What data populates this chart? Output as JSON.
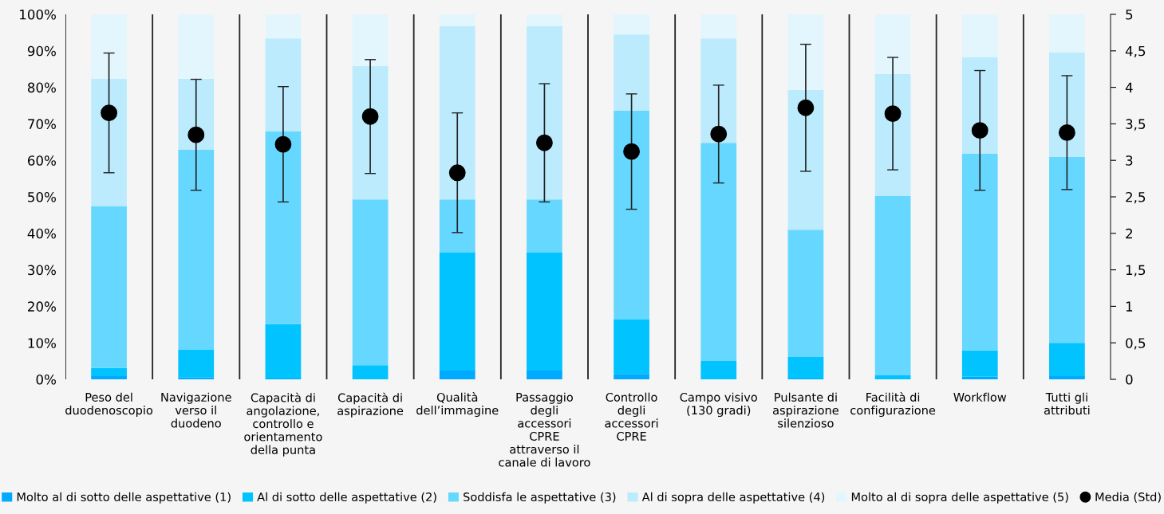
{
  "chart_data": {
    "type": "bar",
    "stacked": true,
    "categories": [
      "Peso del\nduodenoscopio",
      "Navigazione\nverso il\nduodeno",
      "Capacità di\nangolazione,\ncontrollo e\norientamento\ndella punta",
      "Capacità di\naspirazione",
      "Qualità\ndell’immagine",
      "Passaggio\ndegli\naccessori\nCPRE\nattraverso il\ncanale di lavoro",
      "Controllo\ndegli\naccessori\nCPRE",
      "Campo visivo\n(130 gradi)",
      "Pulsante di\naspirazione\nsilenzioso",
      "Facilità di\nconfigurazione",
      "Workflow",
      "Tutti gli\nattributi"
    ],
    "series": [
      {
        "name": "Molto al di sotto delle aspettative (1)",
        "color": "#00aaff",
        "values": [
          0.9,
          0.5,
          0.2,
          0,
          2.4,
          2.4,
          1.5,
          0,
          0.2,
          0,
          0.7,
          0.9
        ]
      },
      {
        "name": "Al di sotto delle aspettative (2)",
        "color": "#00c3ff",
        "values": [
          2.2,
          7.6,
          14.9,
          3.9,
          32.3,
          32.3,
          14.9,
          5.0,
          5.9,
          1.1,
          7.2,
          9.1
        ]
      },
      {
        "name": "Soddisfa le aspettative (3)",
        "color": "#66d8ff",
        "values": [
          44.3,
          54.8,
          52.8,
          45.4,
          14.6,
          14.6,
          57.2,
          59.8,
          34.9,
          49.1,
          53.9,
          50.9
        ]
      },
      {
        "name": "Al di sopra delle aspettative (4)",
        "color": "#bbebfd",
        "values": [
          34.9,
          19.4,
          25.5,
          36.5,
          47.5,
          47.5,
          20.9,
          28.6,
          38.3,
          33.4,
          26.4,
          28.6
        ]
      },
      {
        "name": "Molto al di sopra delle aspettative (5)",
        "color": "#e3f6fd",
        "values": [
          17.7,
          17.7,
          6.6,
          14.2,
          3.2,
          3.2,
          5.5,
          6.6,
          20.7,
          16.4,
          11.8,
          10.5
        ]
      },
      {
        "name": "Media (Std)",
        "type": "scatter",
        "axis": "y2",
        "color": "#000000",
        "marker": "circle",
        "values": [
          3.65,
          3.35,
          3.22,
          3.6,
          2.83,
          3.24,
          3.12,
          3.36,
          3.72,
          3.64,
          3.41,
          3.38
        ],
        "errors": [
          0.82,
          0.76,
          0.79,
          0.78,
          0.82,
          0.81,
          0.79,
          0.67,
          0.87,
          0.77,
          0.82,
          0.78
        ]
      }
    ],
    "ylim": [
      0,
      100
    ],
    "yticks": [
      {
        "value": 0,
        "label": "0%"
      },
      {
        "value": 10,
        "label": "10%"
      },
      {
        "value": 20,
        "label": "20%"
      },
      {
        "value": 30,
        "label": "30%"
      },
      {
        "value": 40,
        "label": "40%"
      },
      {
        "value": 50,
        "label": "50%"
      },
      {
        "value": 60,
        "label": "60%"
      },
      {
        "value": 70,
        "label": "70%"
      },
      {
        "value": 80,
        "label": "80%"
      },
      {
        "value": 90,
        "label": "90%"
      },
      {
        "value": 100,
        "label": "100%"
      }
    ],
    "y2lim": [
      0,
      5
    ],
    "y2ticks": [
      0,
      {
        "value": 0.5,
        "label": "0,5"
      },
      1,
      {
        "value": 1.5,
        "label": "1,5"
      },
      2,
      {
        "value": 2.5,
        "label": "2,5"
      },
      3,
      {
        "value": 3.5,
        "label": "3,5"
      },
      4,
      {
        "value": 4.5,
        "label": "4,5"
      },
      5
    ],
    "grid": "x",
    "legend": "bottom"
  }
}
